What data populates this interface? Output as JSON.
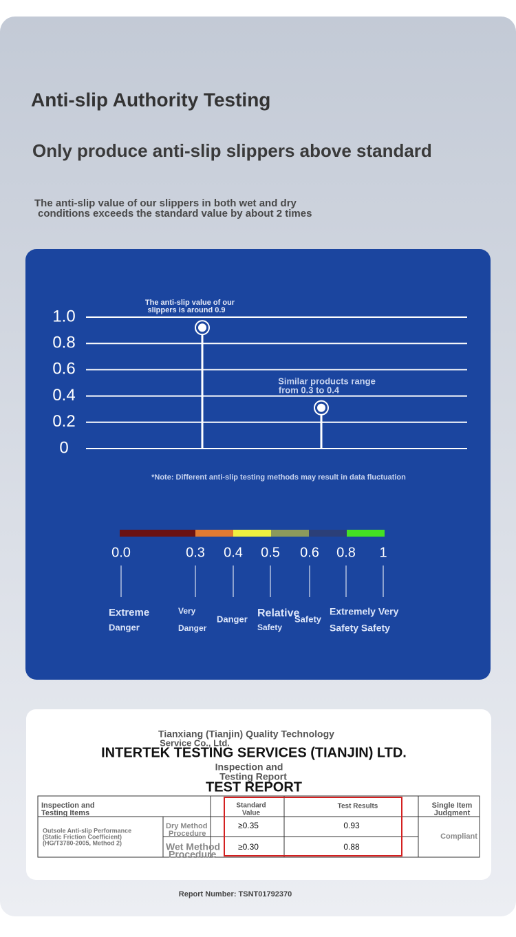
{
  "header": {
    "title": "Anti-slip Authority Testing",
    "subtitle": "Only produce anti-slip slippers above standard",
    "description_lines": [
      "The anti-slip value of our slippers in both wet and dry",
      "conditions exceeds the standard value by about 2 times"
    ]
  },
  "chart_data": {
    "type": "lollipop",
    "values": [
      0.92,
      0.31
    ],
    "color": "#ffffff",
    "ylim": [
      0,
      1
    ],
    "yticks": [
      0,
      0.2,
      0.4,
      0.6,
      0.8,
      {
        "value": 1,
        "label": "1.0"
      }
    ],
    "grid": true,
    "annotations": [
      [
        "The anti-slip value of our",
        "slippers is around 0.9"
      ],
      [
        "Similar products range",
        "from 0.3 to 0.4"
      ]
    ],
    "note": "*Note: Different anti-slip testing methods may result in data fluctuation"
  },
  "scale": {
    "ticks": [
      "0.0",
      "0.3",
      "0.4",
      "0.5",
      "0.6",
      "0.8",
      "1"
    ],
    "colors": [
      "#6b1212",
      "#e07a32",
      "#eef040",
      "#8c9a5c",
      "#2b3f78",
      "#44e024"
    ],
    "labels": [
      "Extreme",
      "Danger",
      "Very",
      "Danger",
      "Danger",
      "Relative",
      "Safety",
      "Safety",
      "Extremely Very",
      "Safety Safety"
    ]
  },
  "report": {
    "issuer_lines": [
      "Tianxiang (Tianjin) Quality Technology",
      "Service Co., Ltd."
    ],
    "company": "INTERTEK TESTING SERVICES (TIANJIN) LTD.",
    "report_type_lines": [
      "Inspection and",
      "Testing Report"
    ],
    "report_title": "TEST REPORT",
    "table": {
      "header": [
        [
          "Inspection and",
          "Testing Items"
        ],
        [
          "Standard",
          "Value"
        ],
        [
          "Test Results"
        ],
        [
          "Single Item",
          "Judgment"
        ]
      ],
      "item_lines": [
        "Outsole Anti-slip Performance",
        "(Static Friction Coefficient)",
        "(HG/T3780-2005, Method 2)"
      ],
      "rows": [
        {
          "method_lines": [
            "Dry Method",
            "Procedure"
          ],
          "standard": "≥0.35",
          "result": "0.93"
        },
        {
          "method_lines": [
            "Wet Method",
            "Procedure"
          ],
          "standard": "≥0.30",
          "result": "0.88"
        }
      ],
      "judgment": "Compliant"
    },
    "report_number": "Report Number: TSNT01792370"
  }
}
